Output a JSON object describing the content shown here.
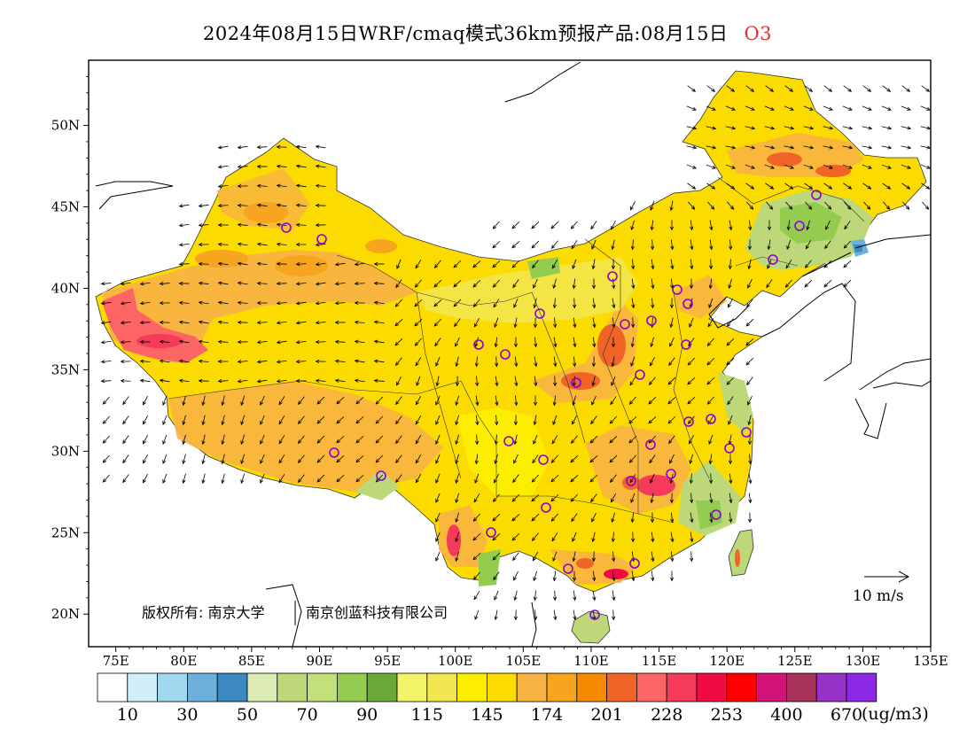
{
  "title": {
    "main": "2024年08月15日WRF/cmaq模式36km预报产品:08月15日",
    "species": "O3",
    "species_color": "#e03030"
  },
  "map": {
    "lat_labels": [
      "50N",
      "45N",
      "40N",
      "35N",
      "30N",
      "25N",
      "20N"
    ],
    "lon_labels": [
      "75E",
      "80E",
      "85E",
      "90E",
      "95E",
      "100E",
      "105E",
      "110E",
      "115E",
      "120E",
      "125E",
      "130E",
      "135E"
    ],
    "lat_range": [
      18,
      54
    ],
    "lon_range": [
      73,
      135
    ],
    "copyright": "版权所有: 南京大学",
    "copyright2": "南京创蓝科技有限公司",
    "wind_ref_label": "10 m/s",
    "cities_marker_color": "#8b00d0"
  },
  "colorbar": {
    "unit": "(ug/m3)",
    "labels": [
      "10",
      "30",
      "50",
      "70",
      "90",
      "115",
      "145",
      "174",
      "201",
      "228",
      "253",
      "400",
      "670"
    ],
    "colors": [
      "#ffffff",
      "#d2eefa",
      "#a0d8f0",
      "#6cb0dc",
      "#3c88c0",
      "#dcebb4",
      "#bcd878",
      "#c2e07a",
      "#94cc50",
      "#6aa838",
      "#f2f56a",
      "#f2e650",
      "#fdee00",
      "#fbdb00",
      "#f8b442",
      "#f7a41e",
      "#f78a00",
      "#f06428",
      "#fd6464",
      "#f53a5a",
      "#f00a46",
      "#ff0000",
      "#d21478",
      "#a8325a",
      "#9632c8",
      "#8c28e6"
    ]
  }
}
